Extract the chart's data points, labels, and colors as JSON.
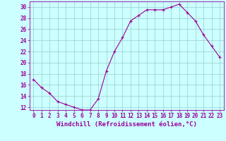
{
  "x": [
    0,
    1,
    2,
    3,
    4,
    5,
    6,
    7,
    8,
    9,
    10,
    11,
    12,
    13,
    14,
    15,
    16,
    17,
    18,
    19,
    20,
    21,
    22,
    23
  ],
  "y": [
    17,
    15.5,
    14.5,
    13,
    12.5,
    12,
    11.5,
    11.5,
    13.5,
    18.5,
    22,
    24.5,
    27.5,
    28.5,
    29.5,
    29.5,
    29.5,
    30,
    30.5,
    29,
    27.5,
    25,
    23,
    21
  ],
  "line_color": "#990099",
  "marker": "+",
  "bg_color": "#ccffff",
  "grid_color": "#99cccc",
  "axis_color": "#990099",
  "xlabel": "Windchill (Refroidissement éolien,°C)",
  "xlabel_fontsize": 6.5,
  "tick_fontsize": 5.5,
  "ylim": [
    11.5,
    31
  ],
  "xlim": [
    -0.5,
    23.5
  ],
  "yticks": [
    12,
    14,
    16,
    18,
    20,
    22,
    24,
    26,
    28,
    30
  ],
  "xticks": [
    0,
    1,
    2,
    3,
    4,
    5,
    6,
    7,
    8,
    9,
    10,
    11,
    12,
    13,
    14,
    15,
    16,
    17,
    18,
    19,
    20,
    21,
    22,
    23
  ]
}
